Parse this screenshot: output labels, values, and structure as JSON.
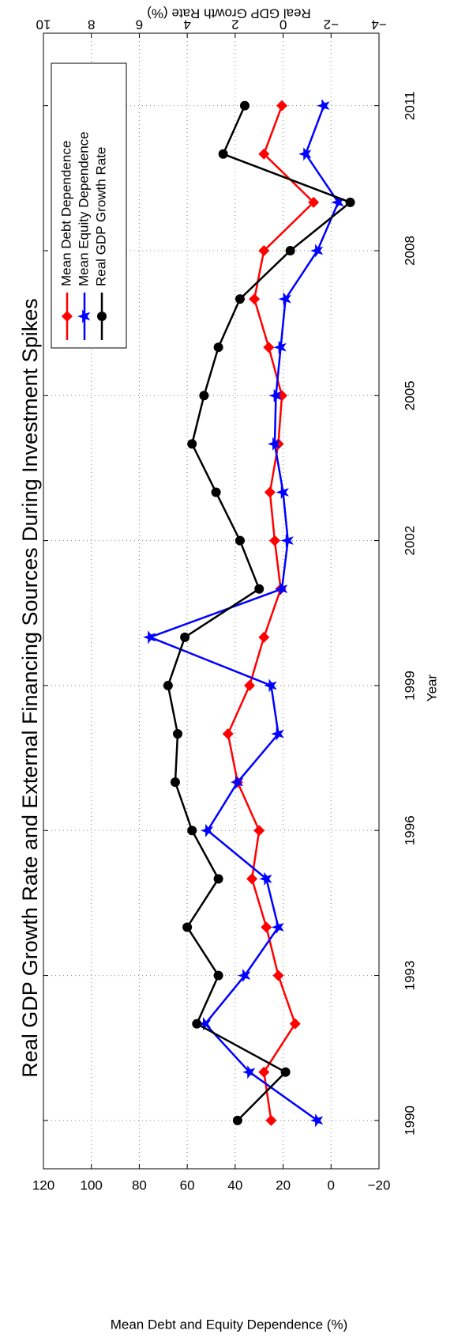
{
  "chart_data": {
    "type": "line",
    "title": "Real GDP Growth Rate and External Financing Sources During Investment Spikes",
    "xlabel": "Year",
    "ylabel": "Mean Debt and Equity Dependence (%)",
    "y2label": "Real GDP Growth Rate (%)",
    "x": [
      1990,
      1991,
      1992,
      1993,
      1994,
      1995,
      1996,
      1997,
      1998,
      1999,
      2000,
      2001,
      2002,
      2003,
      2004,
      2005,
      2006,
      2007,
      2008,
      2009,
      2010,
      2011
    ],
    "xlim": [
      1989,
      2012.5
    ],
    "xticks": [
      1990,
      1993,
      1996,
      1999,
      2002,
      2005,
      2008,
      2011
    ],
    "ylim": [
      -20,
      120
    ],
    "yticks": [
      {
        "value": -20,
        "label": "−20"
      },
      0,
      20,
      40,
      60,
      80,
      100,
      120
    ],
    "y2lim": [
      -4,
      10
    ],
    "y2ticks": [
      {
        "value": -4,
        "label": "−4"
      },
      {
        "value": -2,
        "label": "−2"
      },
      0,
      2,
      4,
      6,
      8,
      10
    ],
    "grid": true,
    "legend": "upper left",
    "series": [
      {
        "name": "Mean Debt Dependence",
        "color": "#ff0000",
        "marker": "diamond",
        "values": [
          25,
          28,
          15,
          22,
          27,
          33,
          30,
          39,
          43,
          34,
          28,
          21,
          23.5,
          25.5,
          22,
          20.5,
          26,
          32,
          28,
          7.3,
          28,
          20.5
        ]
      },
      {
        "name": "Mean Equity Dependence",
        "color": "#0000ff",
        "marker": "star",
        "values": [
          5.7,
          34,
          52.5,
          36,
          22,
          27,
          51.5,
          39,
          22,
          25,
          75.5,
          20.5,
          18,
          20,
          23.5,
          23,
          21,
          19,
          5.7,
          -3,
          10.6,
          3
        ]
      },
      {
        "name": "Real GDP Growth Rate",
        "color": "#000000",
        "marker": "circle",
        "axis": "y2",
        "values": [
          1.9,
          -0.1,
          3.6,
          2.7,
          4.0,
          2.7,
          3.8,
          4.5,
          4.4,
          4.8,
          4.1,
          1.0,
          1.8,
          2.8,
          3.8,
          3.3,
          2.7,
          1.8,
          -0.3,
          -2.8,
          2.5,
          1.6
        ]
      }
    ]
  }
}
